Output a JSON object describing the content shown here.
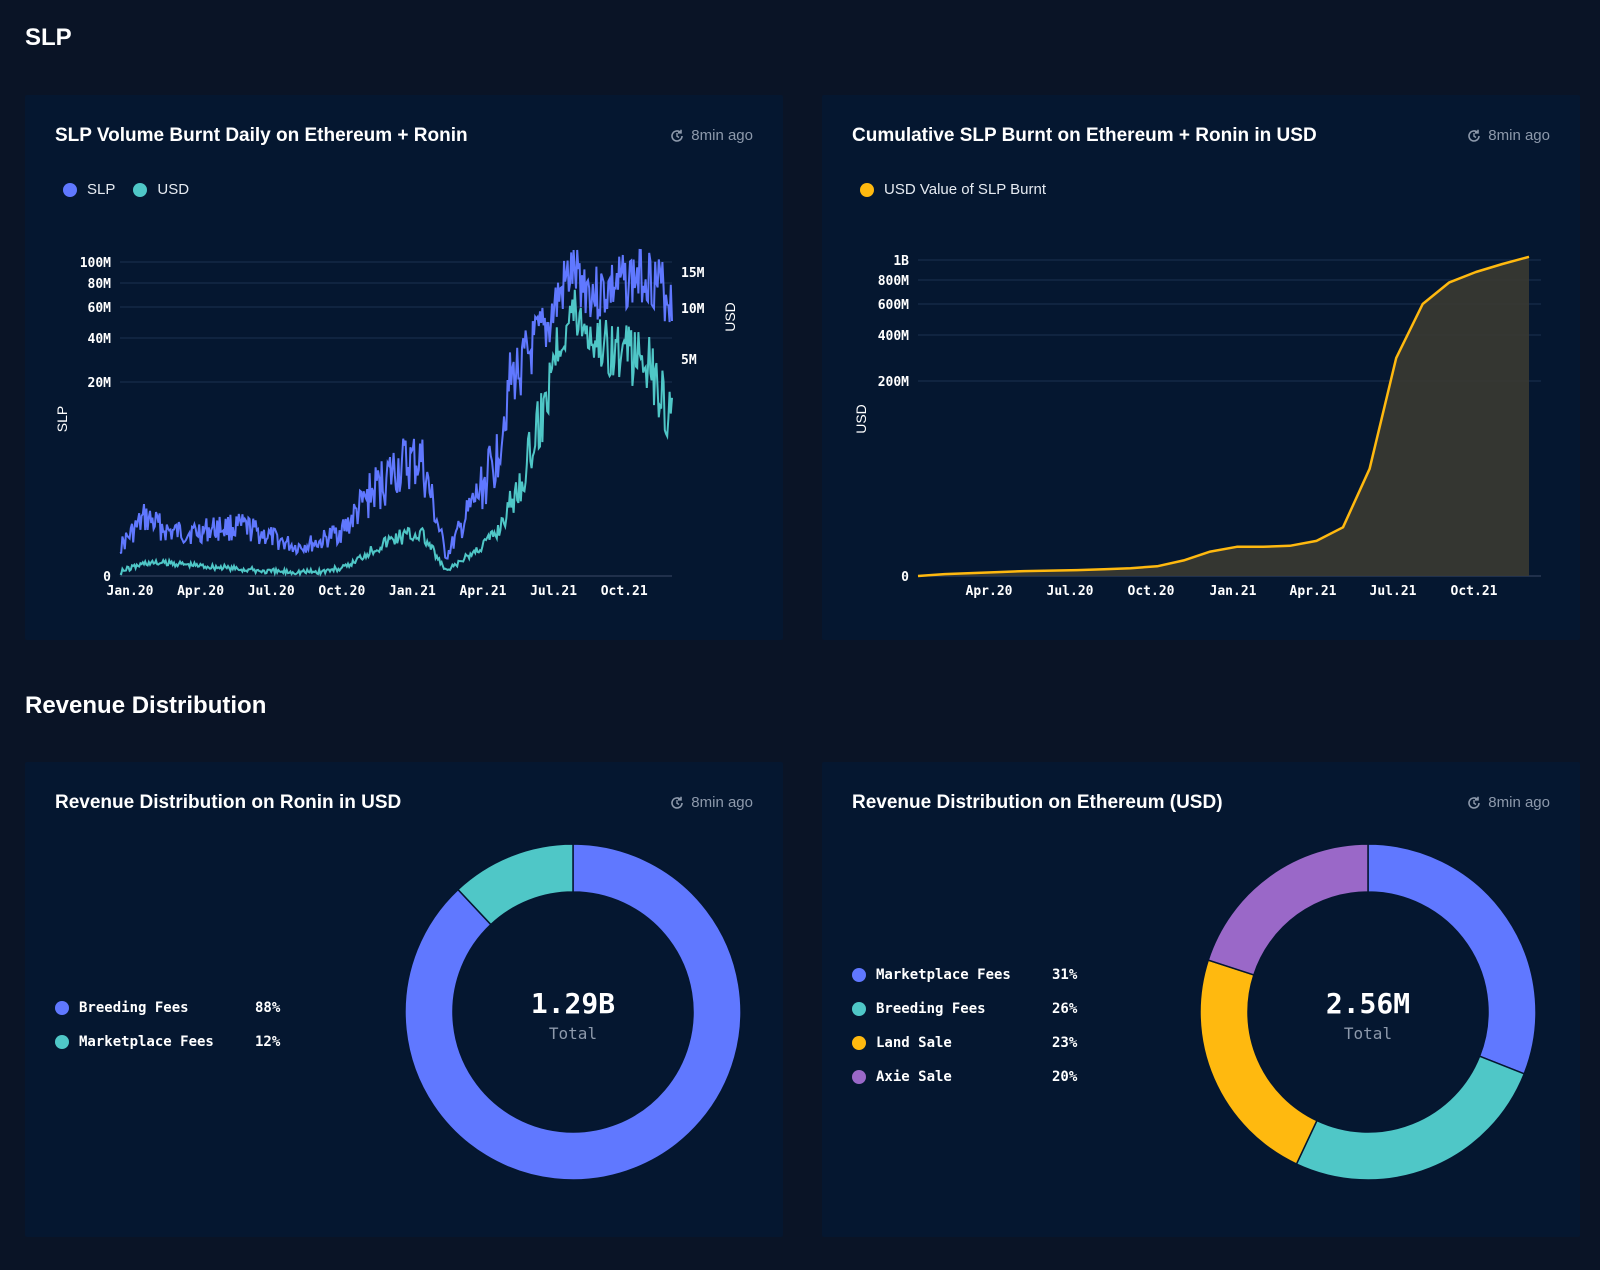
{
  "sections": {
    "slp_title": "SLP",
    "revenue_title": "Revenue Distribution"
  },
  "updated_label": "8min ago",
  "colors": {
    "slp": "#6078ff",
    "usd": "#4fc7c7",
    "gold": "#ffb90f",
    "purple": "#9a68c8"
  },
  "chart_data": [
    {
      "type": "line",
      "title": "SLP Volume Burnt Daily on Ethereum + Ronin",
      "y_left_label": "SLP",
      "y_right_label": "USD",
      "y_left_ticks": [
        "0",
        "20M",
        "40M",
        "60M",
        "80M",
        "100M"
      ],
      "y_right_ticks": [
        "5M",
        "10M",
        "15M"
      ],
      "x_ticks": [
        "Jan.20",
        "Apr.20",
        "Jul.20",
        "Oct.20",
        "Jan.21",
        "Apr.21",
        "Jul.21",
        "Oct.21"
      ],
      "series": [
        {
          "name": "SLP",
          "x": [
            "Jan.20",
            "Feb.20",
            "Mar.20",
            "Apr.20",
            "May.20",
            "Jun.20",
            "Jul.20",
            "Aug.20",
            "Sep.20",
            "Oct.20",
            "Nov.20",
            "Dec.20",
            "Jan.21",
            "Feb.21",
            "Mar.21",
            "Apr.21",
            "May.21",
            "Jun.21",
            "Jul.21",
            "Aug.21",
            "Sep.21",
            "Oct.21",
            "Nov.21"
          ],
          "values": [
            3,
            6,
            4.5,
            4.5,
            5,
            5,
            4,
            3,
            3.5,
            5,
            8.5,
            11,
            12,
            2,
            7,
            12,
            27,
            45,
            90,
            70,
            80,
            90,
            65
          ]
        },
        {
          "name": "USD",
          "x": [
            "Jan.20",
            "Feb.20",
            "Mar.20",
            "Apr.20",
            "May.20",
            "Jun.20",
            "Jul.20",
            "Aug.20",
            "Sep.20",
            "Oct.20",
            "Nov.20",
            "Dec.20",
            "Jan.21",
            "Feb.21",
            "Mar.21",
            "Apr.21",
            "May.21",
            "Jun.21",
            "Jul.21",
            "Aug.21",
            "Sep.21",
            "Oct.21",
            "Nov.21"
          ],
          "values": [
            0.1,
            0.3,
            0.3,
            0.25,
            0.2,
            0.15,
            0.1,
            0.1,
            0.1,
            0.2,
            0.6,
            0.9,
            1.0,
            0.1,
            0.5,
            1.0,
            2.2,
            4.0,
            10.0,
            7.0,
            5.5,
            5.0,
            3.5
          ]
        }
      ]
    },
    {
      "type": "area",
      "title": "Cumulative SLP Burnt on Ethereum + Ronin in USD",
      "y_label": "USD",
      "y_ticks": [
        "0",
        "200M",
        "400M",
        "600M",
        "800M",
        "1B"
      ],
      "x_ticks": [
        "Apr.20",
        "Jul.20",
        "Oct.20",
        "Jan.21",
        "Apr.21",
        "Jul.21",
        "Oct.21"
      ],
      "series": [
        {
          "name": "USD Value of SLP Burnt",
          "x": [
            "Jan.20",
            "Feb.20",
            "Mar.20",
            "Apr.20",
            "May.20",
            "Jun.20",
            "Jul.20",
            "Aug.20",
            "Sep.20",
            "Oct.20",
            "Nov.20",
            "Dec.20",
            "Jan.21",
            "Feb.21",
            "Mar.21",
            "Apr.21",
            "May.21",
            "Jun.21",
            "Jul.21",
            "Aug.21",
            "Sep.21",
            "Oct.21",
            "Nov.21",
            "Dec.21"
          ],
          "values": [
            0,
            2,
            3,
            4,
            5,
            5.5,
            6,
            7,
            8,
            10,
            16,
            25,
            30,
            30,
            31,
            36,
            50,
            110,
            300,
            600,
            780,
            880,
            960,
            1040
          ]
        }
      ]
    },
    {
      "type": "pie",
      "title": "Revenue Distribution on Ronin in USD",
      "total_value": "1.29B",
      "total_label": "Total",
      "slices": [
        {
          "label": "Breeding Fees",
          "percent": 88,
          "percent_label": "88%",
          "color": "#6078ff"
        },
        {
          "label": "Marketplace Fees",
          "percent": 12,
          "percent_label": "12%",
          "color": "#4fc7c7"
        }
      ]
    },
    {
      "type": "pie",
      "title": "Revenue Distribution on Ethereum (USD)",
      "total_value": "2.56M",
      "total_label": "Total",
      "slices": [
        {
          "label": "Marketplace Fees",
          "percent": 31,
          "percent_label": "31%",
          "color": "#6078ff"
        },
        {
          "label": "Breeding Fees",
          "percent": 26,
          "percent_label": "26%",
          "color": "#4fc7c7"
        },
        {
          "label": "Land Sale",
          "percent": 23,
          "percent_label": "23%",
          "color": "#ffb90f"
        },
        {
          "label": "Axie Sale",
          "percent": 20,
          "percent_label": "20%",
          "color": "#9a68c8"
        }
      ]
    }
  ]
}
